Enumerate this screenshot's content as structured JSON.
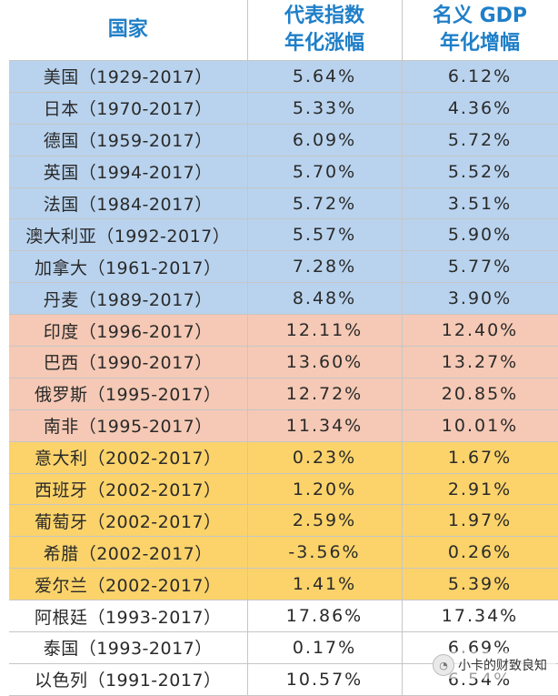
{
  "header": {
    "country": "国家",
    "index_line1": "代表指数",
    "index_line2": "年化涨幅",
    "gdp_line1": "名义 GDP",
    "gdp_line2": "年化增幅"
  },
  "rows": [
    {
      "group": "developed",
      "country": "美国（1929-2017）",
      "index": "5.64%",
      "gdp": "6.12%"
    },
    {
      "group": "developed",
      "country": "日本（1970-2017）",
      "index": "5.33%",
      "gdp": "4.36%"
    },
    {
      "group": "developed",
      "country": "德国（1959-2017）",
      "index": "6.09%",
      "gdp": "5.72%"
    },
    {
      "group": "developed",
      "country": "英国（1994-2017）",
      "index": "5.70%",
      "gdp": "5.52%"
    },
    {
      "group": "developed",
      "country": "法国（1984-2017）",
      "index": "5.72%",
      "gdp": "3.51%"
    },
    {
      "group": "developed",
      "country": "澳大利亚（1992-2017）",
      "index": "5.57%",
      "gdp": "5.90%"
    },
    {
      "group": "developed",
      "country": "加拿大（1961-2017）",
      "index": "7.28%",
      "gdp": "5.77%"
    },
    {
      "group": "developed",
      "country": "丹麦（1989-2017）",
      "index": "8.48%",
      "gdp": "3.90%"
    },
    {
      "group": "brics",
      "country": "印度（1996-2017）",
      "index": "12.11%",
      "gdp": "12.40%"
    },
    {
      "group": "brics",
      "country": "巴西（1990-2017）",
      "index": "13.60%",
      "gdp": "13.27%"
    },
    {
      "group": "brics",
      "country": "俄罗斯（1995-2017）",
      "index": "12.72%",
      "gdp": "20.85%"
    },
    {
      "group": "brics",
      "country": "南非（1995-2017）",
      "index": "11.34%",
      "gdp": "10.01%"
    },
    {
      "group": "southeu",
      "country": "意大利（2002-2017）",
      "index": "0.23%",
      "gdp": "1.67%"
    },
    {
      "group": "southeu",
      "country": "西班牙（2002-2017）",
      "index": "1.20%",
      "gdp": "2.91%"
    },
    {
      "group": "southeu",
      "country": "葡萄牙（2002-2017）",
      "index": "2.59%",
      "gdp": "1.97%"
    },
    {
      "group": "southeu",
      "country": "希腊（2002-2017）",
      "index": "-3.56%",
      "gdp": "0.26%"
    },
    {
      "group": "southeu",
      "country": "爱尔兰（2002-2017）",
      "index": "1.41%",
      "gdp": "5.39%"
    },
    {
      "group": "other",
      "country": "阿根廷（1993-2017）",
      "index": "17.86%",
      "gdp": "17.34%"
    },
    {
      "group": "other",
      "country": "泰国（1993-2017）",
      "index": "0.17%",
      "gdp": "6.69%"
    },
    {
      "group": "other",
      "country": "以色列（1991-2017）",
      "index": "10.57%",
      "gdp": "6.54%"
    }
  ],
  "watermark": {
    "icon": "wechat-icon",
    "text": "小卡的财致良知"
  }
}
